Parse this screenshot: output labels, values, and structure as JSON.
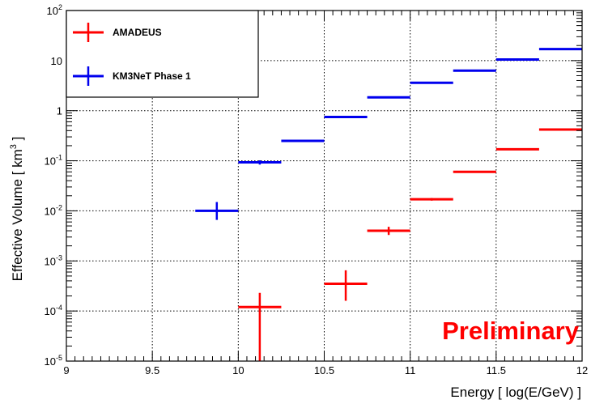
{
  "chart_data": {
    "type": "scatter",
    "xlabel": "Energy [ log(E/GeV) ]",
    "ylabel_text": "Effective Volume [ km",
    "ylabel_sup": "3",
    "ylabel_end": " ]",
    "xlim": [
      9,
      12
    ],
    "ylim": [
      1e-05,
      100
    ],
    "yscale": "log",
    "grid": true,
    "legend_position": "top-left",
    "annotation": "Preliminary",
    "annotation_color": "#ff0000",
    "x_ticks": [
      {
        "value": 9,
        "label": "9"
      },
      {
        "value": 9.5,
        "label": "9.5"
      },
      {
        "value": 10,
        "label": "10"
      },
      {
        "value": 10.5,
        "label": "10.5"
      },
      {
        "value": 11,
        "label": "11"
      },
      {
        "value": 11.5,
        "label": "11.5"
      },
      {
        "value": 12,
        "label": "12"
      }
    ],
    "y_ticks": [
      {
        "value": 1e-05,
        "label": "10",
        "exp": "-5"
      },
      {
        "value": 0.0001,
        "label": "10",
        "exp": "-4"
      },
      {
        "value": 0.001,
        "label": "10",
        "exp": "-3"
      },
      {
        "value": 0.01,
        "label": "10",
        "exp": "-2"
      },
      {
        "value": 0.1,
        "label": "10",
        "exp": "-1"
      },
      {
        "value": 1,
        "label": "1",
        "exp": ""
      },
      {
        "value": 10,
        "label": "10",
        "exp": ""
      },
      {
        "value": 100,
        "label": "10",
        "exp": "2"
      }
    ],
    "series": [
      {
        "name": "AMADEUS",
        "color": "#ff0000",
        "points": [
          {
            "x": 10.125,
            "y": 0.00012,
            "xerr": 0.125,
            "ylo": 1e-05,
            "yhi": 0.00023
          },
          {
            "x": 10.625,
            "y": 0.00035,
            "xerr": 0.125,
            "ylo": 0.00016,
            "yhi": 0.00065
          },
          {
            "x": 10.875,
            "y": 0.004,
            "xerr": 0.125,
            "ylo": 0.0033,
            "yhi": 0.0048
          },
          {
            "x": 11.125,
            "y": 0.017,
            "xerr": 0.125,
            "ylo": 0.016,
            "yhi": 0.018
          },
          {
            "x": 11.375,
            "y": 0.06,
            "xerr": 0.125,
            "ylo": 0.058,
            "yhi": 0.062
          },
          {
            "x": 11.625,
            "y": 0.17,
            "xerr": 0.125,
            "ylo": 0.165,
            "yhi": 0.175
          },
          {
            "x": 11.875,
            "y": 0.42,
            "xerr": 0.125,
            "ylo": 0.41,
            "yhi": 0.43
          }
        ]
      },
      {
        "name": "KM3NeT Phase 1",
        "color": "#0000ee",
        "points": [
          {
            "x": 9.875,
            "y": 0.01,
            "xerr": 0.125,
            "ylo": 0.0066,
            "yhi": 0.015
          },
          {
            "x": 10.125,
            "y": 0.093,
            "xerr": 0.125,
            "ylo": 0.084,
            "yhi": 0.102
          },
          {
            "x": 10.375,
            "y": 0.25,
            "xerr": 0.125,
            "ylo": 0.24,
            "yhi": 0.26
          },
          {
            "x": 10.625,
            "y": 0.75,
            "xerr": 0.125,
            "ylo": 0.73,
            "yhi": 0.77
          },
          {
            "x": 10.875,
            "y": 1.85,
            "xerr": 0.125,
            "ylo": 1.82,
            "yhi": 1.88
          },
          {
            "x": 11.125,
            "y": 3.6,
            "xerr": 0.125,
            "ylo": 3.55,
            "yhi": 3.65
          },
          {
            "x": 11.375,
            "y": 6.3,
            "xerr": 0.125,
            "ylo": 6.2,
            "yhi": 6.4
          },
          {
            "x": 11.625,
            "y": 10.5,
            "xerr": 0.125,
            "ylo": 10.4,
            "yhi": 10.6
          },
          {
            "x": 11.875,
            "y": 17,
            "xerr": 0.125,
            "ylo": 16.9,
            "yhi": 17.1
          }
        ]
      }
    ]
  }
}
